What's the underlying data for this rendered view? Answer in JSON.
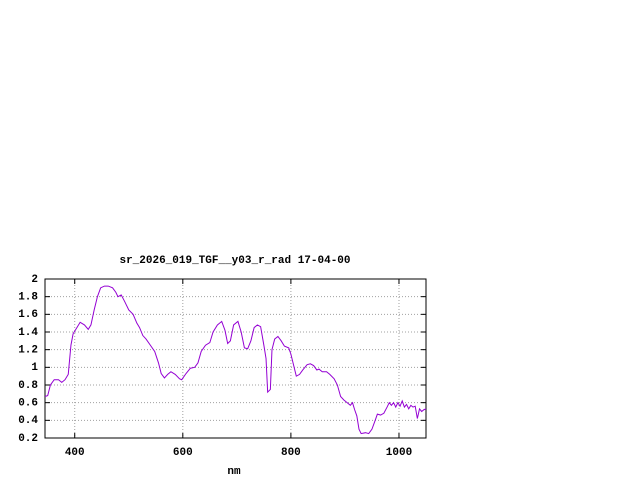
{
  "chart_data": {
    "type": "line",
    "title": "sr_2026_019_TGF__y03_r_rad 17-04-00",
    "x_label": "nm",
    "x": [
      345,
      350,
      355,
      362,
      370,
      376,
      382,
      388,
      393,
      397,
      404,
      410,
      418,
      425,
      430,
      436,
      442,
      448,
      455,
      462,
      470,
      476,
      480,
      486,
      492,
      500,
      508,
      515,
      520,
      526,
      532,
      540,
      548,
      555,
      560,
      566,
      572,
      578,
      586,
      594,
      598,
      606,
      614,
      622,
      628,
      634,
      642,
      650,
      656,
      664,
      672,
      678,
      683,
      688,
      694,
      702,
      708,
      714,
      720,
      726,
      732,
      738,
      744,
      750,
      754,
      757,
      762,
      765,
      770,
      776,
      782,
      788,
      796,
      800,
      806,
      810,
      816,
      822,
      830,
      836,
      842,
      848,
      852,
      858,
      866,
      872,
      880,
      886,
      892,
      898,
      904,
      910,
      914,
      918,
      922,
      926,
      930,
      938,
      944,
      950,
      956,
      960,
      966,
      972,
      978,
      982,
      986,
      990,
      994,
      998,
      1002,
      1006,
      1010,
      1014,
      1018,
      1022,
      1026,
      1030,
      1034,
      1038,
      1042,
      1046,
      1050
    ],
    "series": [
      {
        "color": "#9400d3",
        "values": [
          0.67,
          0.68,
          0.8,
          0.86,
          0.86,
          0.83,
          0.86,
          0.92,
          1.25,
          1.38,
          1.45,
          1.51,
          1.48,
          1.43,
          1.48,
          1.65,
          1.8,
          1.9,
          1.92,
          1.92,
          1.9,
          1.85,
          1.8,
          1.82,
          1.75,
          1.65,
          1.6,
          1.5,
          1.45,
          1.36,
          1.32,
          1.25,
          1.18,
          1.05,
          0.93,
          0.88,
          0.92,
          0.95,
          0.92,
          0.87,
          0.86,
          0.93,
          0.99,
          1.0,
          1.05,
          1.18,
          1.25,
          1.28,
          1.4,
          1.48,
          1.52,
          1.42,
          1.27,
          1.3,
          1.48,
          1.52,
          1.4,
          1.22,
          1.21,
          1.3,
          1.45,
          1.48,
          1.46,
          1.25,
          1.1,
          0.72,
          0.75,
          1.2,
          1.32,
          1.35,
          1.3,
          1.24,
          1.22,
          1.15,
          1.0,
          0.9,
          0.92,
          0.97,
          1.03,
          1.04,
          1.02,
          0.97,
          0.98,
          0.95,
          0.95,
          0.92,
          0.87,
          0.8,
          0.67,
          0.63,
          0.6,
          0.57,
          0.6,
          0.52,
          0.45,
          0.3,
          0.25,
          0.26,
          0.25,
          0.3,
          0.4,
          0.47,
          0.46,
          0.48,
          0.55,
          0.6,
          0.57,
          0.6,
          0.55,
          0.6,
          0.56,
          0.62,
          0.55,
          0.58,
          0.53,
          0.57,
          0.55,
          0.56,
          0.42,
          0.53,
          0.5,
          0.52,
          0.53
        ]
      }
    ],
    "xlim": [
      345,
      1050
    ],
    "xticks": [
      400,
      600,
      800,
      1000
    ],
    "ylim": [
      0.2,
      2
    ],
    "yticks": [
      0.2,
      0.4,
      0.6,
      0.8,
      1,
      1.2,
      1.4,
      1.6,
      1.8,
      2
    ],
    "grid": true
  }
}
